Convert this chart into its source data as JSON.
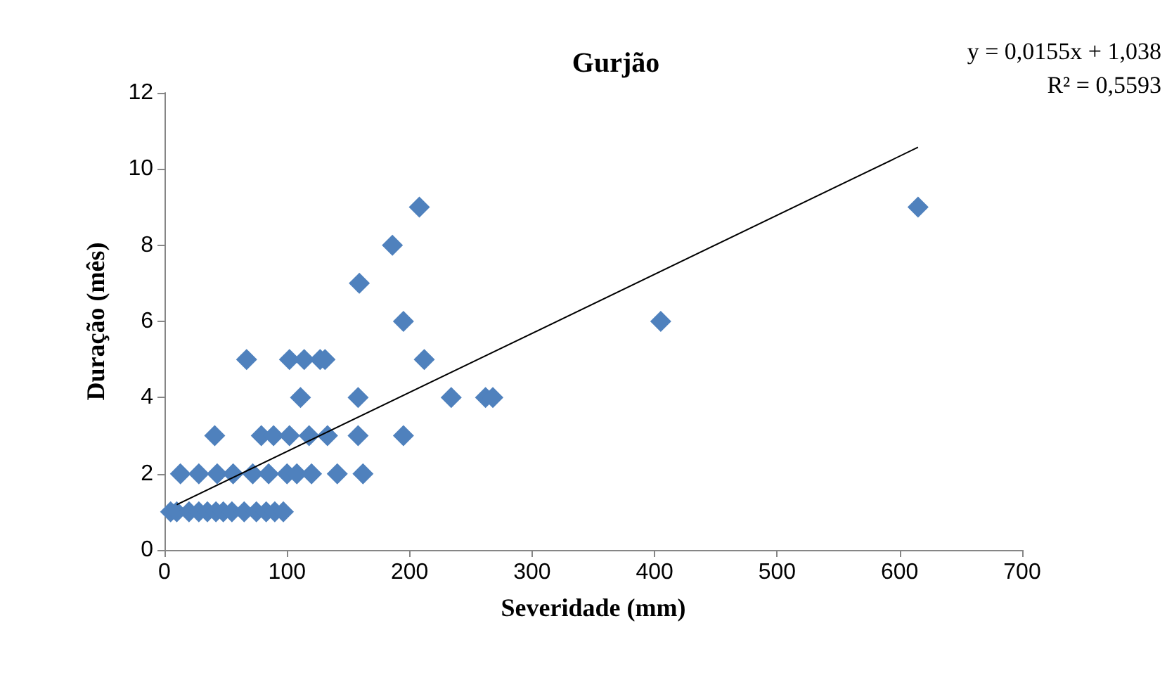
{
  "chart_data": {
    "type": "scatter",
    "title": "Gurjão",
    "xlabel": "Severidade (mm)",
    "ylabel": "Duração (mês)",
    "annotations": [
      "y = 0,0155x + 1,038",
      "R² = 0,5593"
    ],
    "xlim": [
      0,
      700
    ],
    "xticks": [
      0,
      100,
      200,
      300,
      400,
      500,
      600,
      700
    ],
    "ylim": [
      0,
      12
    ],
    "yticks": [
      0,
      2,
      4,
      6,
      8,
      10,
      12
    ],
    "grid": false,
    "marker": "diamond",
    "series": [
      {
        "color": "#4f81bd",
        "x": [
          208,
          615,
          186,
          159,
          195,
          405,
          67,
          102,
          114,
          127,
          131,
          212,
          111,
          158,
          234,
          262,
          268,
          41,
          79,
          89,
          102,
          118,
          133,
          158,
          195,
          13,
          28,
          43,
          56,
          72,
          85,
          100,
          108,
          120,
          141,
          162,
          5,
          10,
          20,
          28,
          35,
          42,
          48,
          55,
          65,
          75,
          83,
          90,
          97
        ],
        "values": [
          9,
          9,
          8,
          7,
          6,
          6,
          5,
          5,
          5,
          5,
          5,
          5,
          4,
          4,
          4,
          4,
          4,
          3,
          3,
          3,
          3,
          3,
          3,
          3,
          3,
          2,
          2,
          2,
          2,
          2,
          2,
          2,
          2,
          2,
          2,
          2,
          1,
          1,
          1,
          1,
          1,
          1,
          1,
          1,
          1,
          1,
          1,
          1,
          1
        ]
      },
      {
        "type": "line",
        "color": "#000000",
        "marker": "none",
        "x": [
          10,
          615
        ],
        "values": [
          1.19,
          10.57
        ]
      }
    ]
  }
}
